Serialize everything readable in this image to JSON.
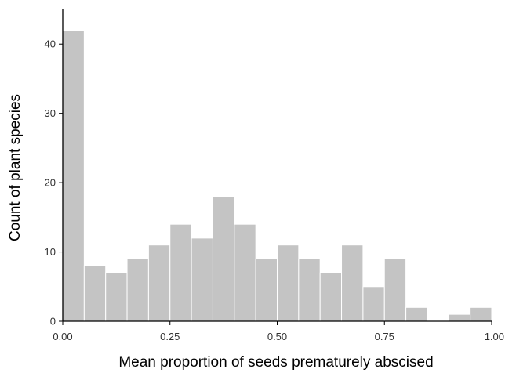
{
  "chart_data": {
    "type": "bar",
    "title": "",
    "xlabel": "Mean proportion of seeds prematurely abscised",
    "ylabel": "Count of plant species",
    "xlim": [
      0,
      1.0
    ],
    "ylim": [
      0,
      45
    ],
    "x_ticks": [
      0,
      0.25,
      0.5,
      0.75,
      1.0
    ],
    "x_tick_labels": [
      "0.00",
      "0.25",
      "0.50",
      "0.75",
      "1.00"
    ],
    "y_ticks": [
      0,
      10,
      20,
      30,
      40
    ],
    "y_tick_labels": [
      "0",
      "10",
      "20",
      "30",
      "40"
    ],
    "bin_width": 0.05,
    "bins_start": [
      0,
      0.05,
      0.1,
      0.15,
      0.2,
      0.25,
      0.3,
      0.35,
      0.4,
      0.45,
      0.5,
      0.55,
      0.6,
      0.65,
      0.7,
      0.75,
      0.8,
      0.85,
      0.9,
      0.95
    ],
    "values": [
      42,
      8,
      7,
      9,
      11,
      14,
      12,
      18,
      14,
      9,
      11,
      9,
      7,
      11,
      5,
      9,
      2,
      0,
      1,
      2
    ],
    "grid": false,
    "colors": {
      "bar": "#c4c4c4",
      "bar_edge": "#ffffff",
      "axis": "#000000"
    }
  }
}
